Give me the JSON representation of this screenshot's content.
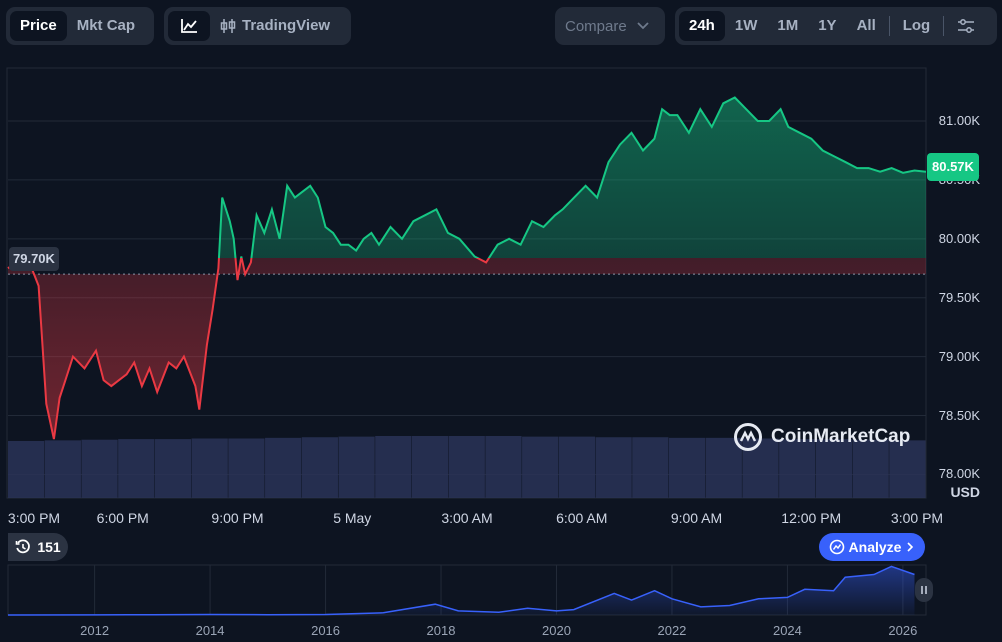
{
  "toolbar": {
    "type_tabs": [
      "Price",
      "Mkt Cap"
    ],
    "active_type": "Price",
    "trading_view_label": "TradingView",
    "compare_label": "Compare",
    "ranges": [
      "24h",
      "1W",
      "1M",
      "1Y",
      "All"
    ],
    "active_range": "24h",
    "log_label": "Log"
  },
  "price": {
    "current_label": "80.57K",
    "open_label": "79.70K",
    "currency": "USD"
  },
  "watermark": "CoinMarketCap",
  "history_badge": "151",
  "analyze_label": "Analyze",
  "colors": {
    "up": "#16c784",
    "down": "#ea3943",
    "accent": "#3861fb",
    "bg": "#0d1421"
  },
  "chart_data": {
    "type": "line",
    "ylabel": "USD",
    "ylim": [
      77800,
      81450
    ],
    "yticks": [
      "78.50K",
      "79.00K",
      "79.50K",
      "80.00K",
      "80.50K",
      "81.00K"
    ],
    "ytick_values": [
      78500,
      79000,
      79500,
      80000,
      80500,
      81000
    ],
    "xtick_labels": [
      "3:00 PM",
      "6:00 PM",
      "9:00 PM",
      "5 May",
      "3:00 AM",
      "6:00 AM",
      "9:00 AM",
      "12:00 PM",
      "3:00 PM"
    ],
    "xtick_hours": [
      0,
      3,
      6,
      9,
      12,
      15,
      18,
      21,
      24
    ],
    "baseline": 79700,
    "series": [
      {
        "x": [
          0,
          0.2,
          0.5,
          0.8,
          1.0,
          1.2,
          1.35,
          1.5,
          1.7,
          2.0,
          2.3,
          2.5,
          2.7,
          2.9,
          3.1,
          3.3,
          3.5,
          3.7,
          3.9,
          4.2,
          4.4,
          4.6,
          4.9,
          5.0,
          5.2,
          5.35,
          5.5,
          5.6,
          5.8,
          5.9,
          6.0,
          6.1,
          6.2,
          6.35,
          6.5,
          6.7,
          6.9,
          7.1,
          7.3,
          7.5,
          7.7,
          7.9,
          8.1,
          8.3,
          8.5,
          8.7,
          8.9,
          9.1,
          9.3,
          9.5,
          9.7,
          10.0,
          10.3,
          10.6,
          10.9,
          11.2,
          11.5,
          11.8,
          12.2,
          12.5,
          12.8,
          13.1,
          13.4,
          13.7,
          14.0,
          14.3,
          14.5,
          14.8,
          15.1,
          15.4,
          15.7,
          16.0,
          16.3,
          16.6,
          16.9,
          17.1,
          17.3,
          17.5,
          17.8,
          18.1,
          18.4,
          18.7,
          19.0,
          19.3,
          19.6,
          19.9,
          20.2,
          20.4,
          20.7,
          21.0,
          21.3,
          21.6,
          21.9,
          22.2,
          22.5,
          22.8,
          23.1,
          23.4,
          23.7,
          24.0
        ],
        "y": [
          79750,
          79800,
          79850,
          79600,
          78600,
          78300,
          78650,
          78800,
          79000,
          78900,
          79050,
          78800,
          78750,
          78800,
          78850,
          78950,
          78750,
          78900,
          78700,
          78950,
          78900,
          79000,
          78750,
          78550,
          79100,
          79400,
          79750,
          80350,
          80150,
          80000,
          79650,
          79850,
          79700,
          79800,
          80200,
          80050,
          80250,
          80000,
          80450,
          80350,
          80400,
          80450,
          80350,
          80100,
          80050,
          79950,
          79950,
          79900,
          80000,
          80050,
          79950,
          80100,
          80000,
          80150,
          80200,
          80250,
          80050,
          80000,
          79850,
          79800,
          79950,
          80000,
          79950,
          80150,
          80100,
          80200,
          80250,
          80350,
          80450,
          80350,
          80650,
          80800,
          80900,
          80750,
          80850,
          81100,
          81050,
          81050,
          80900,
          81100,
          80950,
          81150,
          81200,
          81100,
          81000,
          81000,
          81100,
          80950,
          80900,
          80850,
          80750,
          80700,
          80650,
          80600,
          80600,
          80570,
          80600,
          80560,
          80580,
          80570
        ]
      }
    ],
    "volume": [
      0.92,
      0.93,
      0.94,
      0.95,
      0.95,
      0.96,
      0.96,
      0.97,
      0.98,
      0.99,
      1.0,
      1.0,
      1.0,
      1.0,
      0.99,
      0.99,
      0.98,
      0.98,
      0.97,
      0.97,
      0.96,
      0.95,
      0.95,
      0.94,
      0.93
    ],
    "minimap": {
      "xtick_labels": [
        "2012",
        "2014",
        "2016",
        "2018",
        "2020",
        "2022",
        "2024",
        "2026"
      ],
      "xtick_years": [
        2012,
        2014,
        2016,
        2018,
        2020,
        2022,
        2024,
        2026
      ],
      "years": [
        2010.5,
        2012,
        2013,
        2014,
        2015,
        2016,
        2017,
        2017.9,
        2018.3,
        2019,
        2019.5,
        2020,
        2020.3,
        2021,
        2021.3,
        2021.7,
        2022,
        2022.5,
        2023,
        2023.5,
        2024,
        2024.3,
        2024.8,
        2025,
        2025.5,
        2025.8,
        2026.2
      ],
      "values": [
        0,
        0.2,
        1,
        2,
        1,
        2,
        8,
        40,
        15,
        10,
        25,
        15,
        20,
        80,
        55,
        90,
        60,
        30,
        35,
        60,
        65,
        95,
        90,
        140,
        150,
        180,
        150
      ]
    }
  }
}
